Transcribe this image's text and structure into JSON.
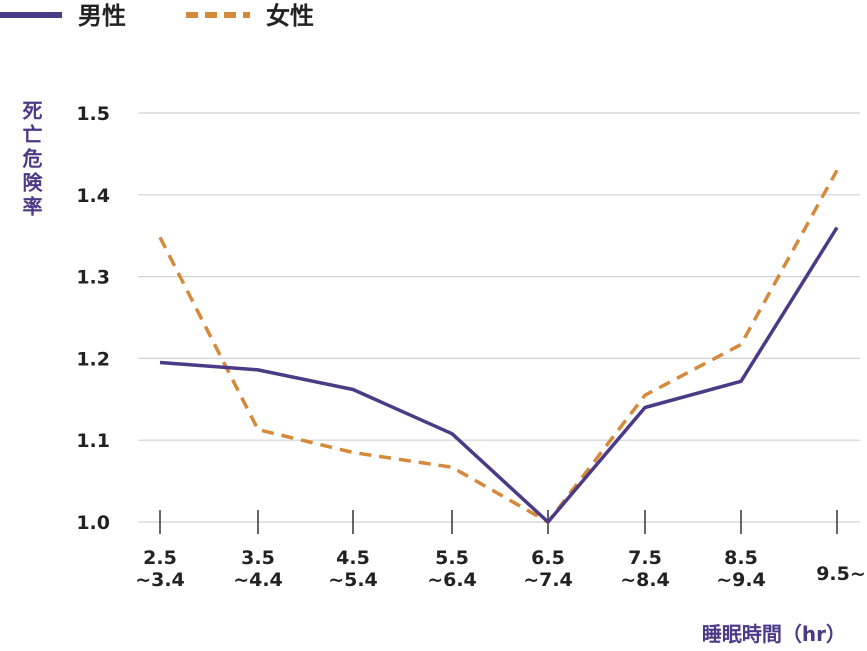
{
  "chart_data": {
    "type": "line",
    "ylabel": "死亡危険率",
    "xlabel": "睡眠時間（hr）",
    "categories": [
      [
        "2.5",
        "~3.4"
      ],
      [
        "3.5",
        "~4.4"
      ],
      [
        "4.5",
        "~5.4"
      ],
      [
        "5.5",
        "~6.4"
      ],
      [
        "6.5",
        "~7.4"
      ],
      [
        "7.5",
        "~8.4"
      ],
      [
        "8.5",
        "~9.4"
      ],
      [
        "9.5~"
      ]
    ],
    "yticks": [
      "1.0",
      "1.1",
      "1.2",
      "1.3",
      "1.4",
      "1.5"
    ],
    "ylim": [
      1.0,
      1.5
    ],
    "grid": true,
    "legend_position": "top-left",
    "series": [
      {
        "name": "男性",
        "color": "#4b3a86",
        "style": "solid",
        "values": [
          1.195,
          1.186,
          1.162,
          1.108,
          1.0,
          1.14,
          1.172,
          1.36
        ]
      },
      {
        "name": "女性",
        "color": "#d5893b",
        "style": "dashed",
        "values": [
          1.348,
          1.113,
          1.085,
          1.067,
          1.0,
          1.155,
          1.217,
          1.43
        ]
      }
    ]
  }
}
